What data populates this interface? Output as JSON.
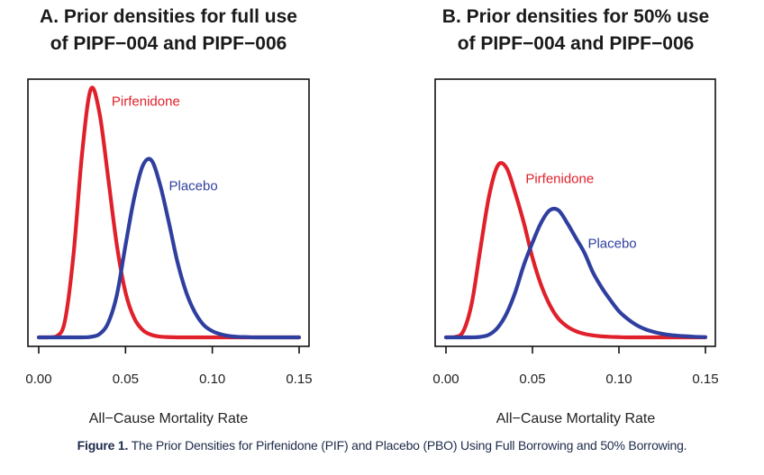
{
  "figure": {
    "caption_label": "Figure 1.",
    "caption_text": "The Prior Densities for Pirfenidone (PIF) and Placebo (PBO) Using Full Borrowing and 50% Borrowing."
  },
  "colors": {
    "pirfenidone": "#e0202a",
    "placebo": "#2f3fa0",
    "frame": "#111111"
  },
  "chart_data": [
    {
      "type": "line",
      "panel": "A",
      "title_line1": "A. Prior densities for full use",
      "title_line2": "of PIPF−004 and PIPF−006",
      "xlabel": "All−Cause Mortality Rate",
      "ylabel": "",
      "xlim": [
        0.0,
        0.15
      ],
      "ylim": [
        0.0,
        1.04
      ],
      "y_units": "relative density (no y-axis ticks shown)",
      "xticks": [
        "0.00",
        "0.05",
        "0.10",
        "0.15"
      ],
      "xtick_values": [
        0.0,
        0.05,
        0.1,
        0.15
      ],
      "grid": false,
      "legend": "inline labels",
      "x": [
        0.0,
        0.005,
        0.01,
        0.015,
        0.02,
        0.025,
        0.03,
        0.035,
        0.04,
        0.045,
        0.05,
        0.055,
        0.06,
        0.065,
        0.07,
        0.075,
        0.08,
        0.085,
        0.09,
        0.095,
        0.1,
        0.105,
        0.11,
        0.115,
        0.12,
        0.125,
        0.13,
        0.135,
        0.14,
        0.145,
        0.15
      ],
      "series": [
        {
          "name": "Pirfenidone",
          "label": "Pirfenidone",
          "label_anchor": [
            0.042,
            0.93
          ],
          "color_key": "pirfenidone",
          "values": [
            0.0,
            0.0,
            0.003,
            0.063,
            0.33,
            0.74,
            0.996,
            0.9,
            0.64,
            0.37,
            0.18,
            0.077,
            0.029,
            0.01,
            0.003,
            0.001,
            0.0,
            0.0,
            0.0,
            0.0,
            0.0,
            0.0,
            0.0,
            0.0,
            0.0,
            0.0,
            0.0,
            0.0,
            0.0,
            0.0,
            0.0
          ]
        },
        {
          "name": "Placebo",
          "label": "Placebo",
          "label_anchor": [
            0.075,
            0.59
          ],
          "color_key": "placebo",
          "values": [
            0.0,
            0.0,
            0.0,
            0.0,
            0.0,
            0.0,
            0.002,
            0.013,
            0.058,
            0.17,
            0.37,
            0.56,
            0.69,
            0.71,
            0.61,
            0.46,
            0.3,
            0.18,
            0.1,
            0.05,
            0.025,
            0.012,
            0.005,
            0.002,
            0.001,
            0.0,
            0.0,
            0.0,
            0.0,
            0.0,
            0.0
          ]
        }
      ]
    },
    {
      "type": "line",
      "panel": "B",
      "title_line1": "B. Prior densities for 50% use",
      "title_line2": "of PIPF−004 and PIPF−006",
      "xlabel": "All−Cause Mortality Rate",
      "ylabel": "",
      "xlim": [
        0.0,
        0.15
      ],
      "ylim": [
        0.0,
        1.04
      ],
      "y_units": "relative density (no y-axis ticks shown)",
      "xticks": [
        "0.00",
        "0.05",
        "0.10",
        "0.15"
      ],
      "xtick_values": [
        0.0,
        0.05,
        0.1,
        0.15
      ],
      "grid": false,
      "legend": "inline labels",
      "x": [
        0.0,
        0.005,
        0.01,
        0.015,
        0.02,
        0.025,
        0.03,
        0.035,
        0.04,
        0.045,
        0.05,
        0.055,
        0.06,
        0.065,
        0.07,
        0.075,
        0.08,
        0.085,
        0.09,
        0.095,
        0.1,
        0.105,
        0.11,
        0.115,
        0.12,
        0.125,
        0.13,
        0.135,
        0.14,
        0.145,
        0.15
      ],
      "series": [
        {
          "name": "Pirfenidone",
          "label": "Pirfenidone",
          "label_anchor": [
            0.046,
            0.62
          ],
          "color_key": "pirfenidone",
          "values": [
            0.0,
            0.001,
            0.024,
            0.14,
            0.36,
            0.57,
            0.69,
            0.68,
            0.58,
            0.46,
            0.32,
            0.21,
            0.13,
            0.075,
            0.044,
            0.025,
            0.014,
            0.008,
            0.004,
            0.002,
            0.001,
            0.0,
            0.0,
            0.0,
            0.0,
            0.0,
            0.0,
            0.0,
            0.0,
            0.0,
            0.0
          ]
        },
        {
          "name": "Placebo",
          "label": "Placebo",
          "label_anchor": [
            0.082,
            0.36
          ],
          "color_key": "placebo",
          "values": [
            0.0,
            0.0,
            0.0,
            0.0,
            0.002,
            0.011,
            0.04,
            0.095,
            0.18,
            0.29,
            0.38,
            0.46,
            0.51,
            0.51,
            0.46,
            0.4,
            0.34,
            0.26,
            0.2,
            0.15,
            0.105,
            0.074,
            0.05,
            0.033,
            0.022,
            0.014,
            0.009,
            0.006,
            0.004,
            0.002,
            0.001
          ]
        }
      ]
    }
  ]
}
